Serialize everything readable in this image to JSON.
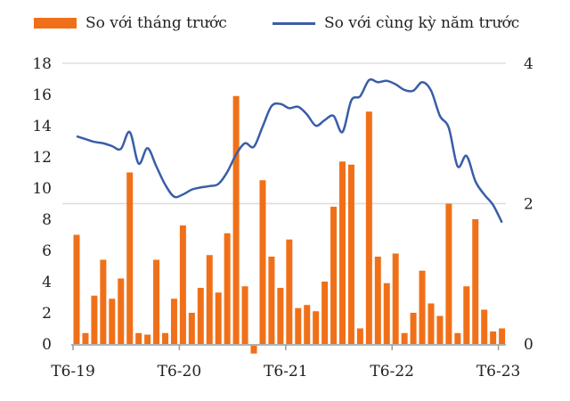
{
  "chart_data": {
    "type": "bar+line",
    "legend_position": "top",
    "grid": true,
    "colors": {
      "bars": "#f07019",
      "line": "#3a5da8"
    },
    "x_tick_labels": [
      "T6-19",
      "T6-20",
      "T6-21",
      "T6-22",
      "T6-23"
    ],
    "left_axis": {
      "ylim": [
        0,
        18
      ],
      "ticks": [
        "0",
        "2",
        "4",
        "6",
        "8",
        "10",
        "12",
        "14",
        "16",
        "18"
      ]
    },
    "right_axis": {
      "ylim": [
        0,
        4
      ],
      "ticks": [
        "0",
        "2",
        "4"
      ]
    },
    "series": [
      {
        "name": "So với tháng trước",
        "type": "bar",
        "axis": "left",
        "values": [
          7.0,
          0.7,
          3.1,
          5.4,
          2.9,
          4.2,
          11.0,
          0.7,
          0.6,
          5.4,
          0.7,
          2.9,
          7.6,
          2.0,
          3.6,
          5.7,
          3.3,
          7.1,
          15.9,
          3.7,
          -0.5,
          10.5,
          5.6,
          3.6,
          6.7,
          2.3,
          2.5,
          2.1,
          4.0,
          8.8,
          11.7,
          11.5,
          1.0,
          14.9,
          5.6,
          3.9,
          5.8,
          0.7,
          2.0,
          4.7,
          2.6,
          1.8,
          9.0,
          0.7,
          3.7,
          8.0,
          2.2,
          0.8,
          1.0
        ]
      },
      {
        "name": "So với cùng kỳ năm trước",
        "type": "line",
        "axis": "right",
        "values": [
          2.96,
          2.92,
          2.88,
          2.86,
          2.82,
          2.78,
          3.02,
          2.57,
          2.79,
          2.53,
          2.27,
          2.1,
          2.13,
          2.2,
          2.23,
          2.25,
          2.28,
          2.45,
          2.7,
          2.86,
          2.81,
          3.1,
          3.39,
          3.42,
          3.36,
          3.38,
          3.27,
          3.11,
          3.19,
          3.25,
          3.02,
          3.47,
          3.53,
          3.76,
          3.73,
          3.75,
          3.7,
          3.62,
          3.61,
          3.73,
          3.61,
          3.25,
          3.08,
          2.53,
          2.68,
          2.32,
          2.13,
          1.98,
          1.73
        ]
      }
    ]
  }
}
